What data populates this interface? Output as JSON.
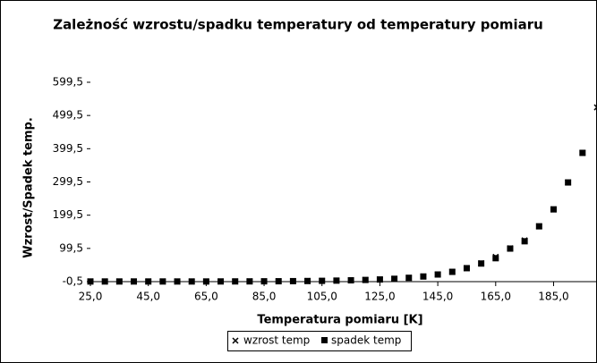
{
  "chart_data": {
    "type": "scatter",
    "title": "Zależność wzrostu/spadku temperatury od temperatury pomiaru",
    "x_label": "Temperatura pomiaru [K]",
    "y_label": "Wzrost/Spadek temp.",
    "x": [
      25,
      30,
      35,
      40,
      45,
      50,
      55,
      60,
      65,
      70,
      75,
      80,
      85,
      90,
      95,
      100,
      105,
      110,
      115,
      120,
      125,
      130,
      135,
      140,
      145,
      150,
      155,
      160,
      165,
      170,
      175,
      180,
      185,
      190,
      195,
      200
    ],
    "series": [
      {
        "name": "wzrost temp",
        "color": "#000000",
        "marker": "x",
        "values": [
          0,
          0,
          0,
          0,
          0,
          0,
          0,
          0,
          0,
          0.1,
          0.2,
          0.3,
          0.5,
          0.7,
          1,
          1.4,
          1.9,
          2.6,
          3.5,
          4.6,
          6,
          8,
          11,
          15,
          21,
          29,
          40,
          55,
          74,
          100,
          124,
          166,
          217,
          298,
          387,
          524
        ]
      },
      {
        "name": "spadek temp",
        "color": "#000000",
        "marker": "square",
        "values": [
          0,
          0,
          0,
          0,
          0,
          0,
          0,
          0,
          0,
          0.1,
          0.2,
          0.3,
          0.5,
          0.7,
          1,
          1.4,
          1.9,
          2.6,
          3.5,
          4.6,
          6,
          8,
          11,
          15,
          21,
          29,
          40,
          54,
          70,
          99,
          121,
          166,
          217,
          298,
          387,
          null
        ]
      }
    ],
    "xlim": [
      25,
      200
    ],
    "xticks": [
      {
        "value": 25,
        "label": "25,0"
      },
      {
        "value": 45,
        "label": "45,0"
      },
      {
        "value": 65,
        "label": "65,0"
      },
      {
        "value": 85,
        "label": "85,0"
      },
      {
        "value": 105,
        "label": "105,0"
      },
      {
        "value": 125,
        "label": "125,0"
      },
      {
        "value": 145,
        "label": "145,0"
      },
      {
        "value": 165,
        "label": "165,0"
      },
      {
        "value": 185,
        "label": "185,0"
      }
    ],
    "ylim": [
      -0.5,
      599.5
    ],
    "yticks": [
      {
        "value": -0.5,
        "label": "-0,5"
      },
      {
        "value": 99.5,
        "label": "99,5"
      },
      {
        "value": 199.5,
        "label": "199,5"
      },
      {
        "value": 299.5,
        "label": "299,5"
      },
      {
        "value": 399.5,
        "label": "399,5"
      },
      {
        "value": 499.5,
        "label": "499,5"
      },
      {
        "value": 599.5,
        "label": "599,5"
      }
    ],
    "legend": "bottom"
  }
}
